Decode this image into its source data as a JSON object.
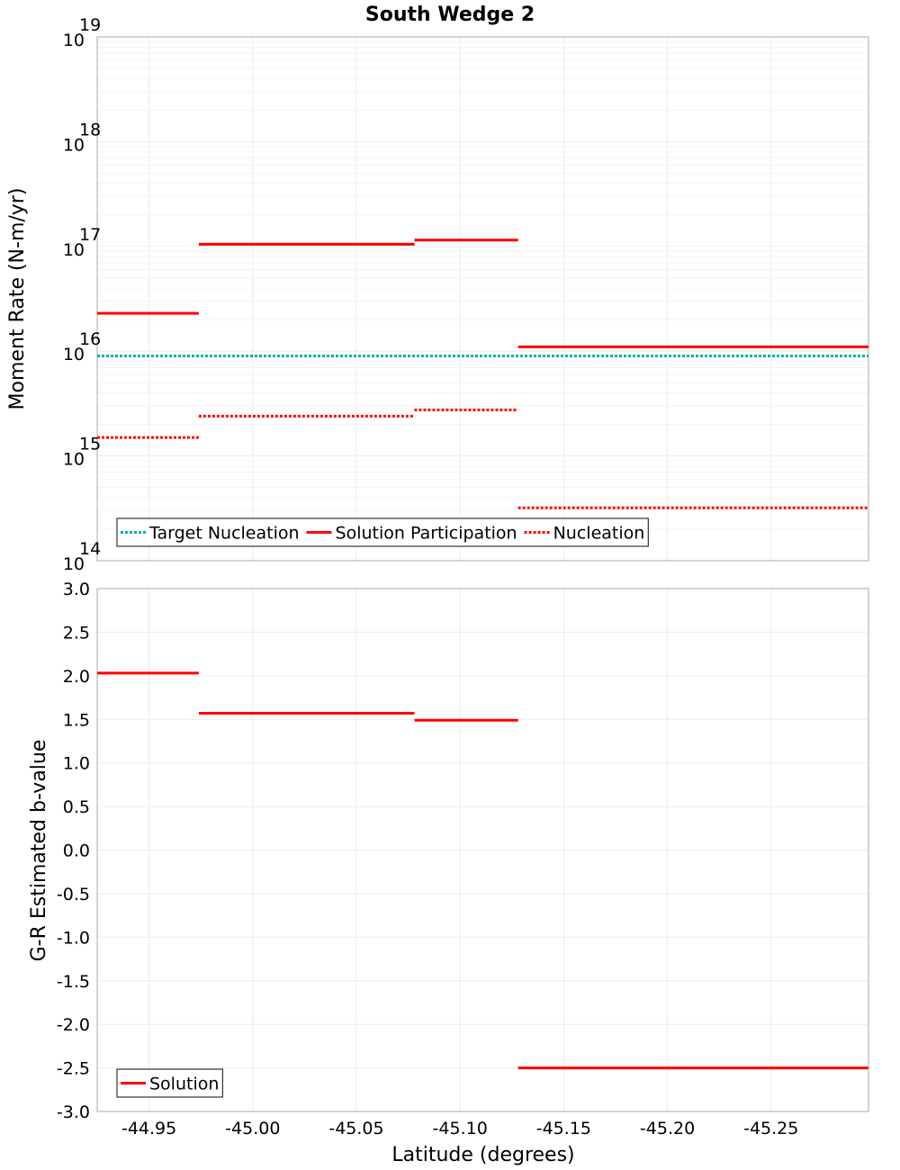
{
  "chart_data": {
    "type": "line",
    "title": "South Wedge 2",
    "xlabel": "Latitude (degrees)",
    "xlim": [
      -44.925,
      -45.297
    ],
    "x_ticks": [
      "-44.95",
      "-45.00",
      "-45.05",
      "-45.10",
      "-45.15",
      "-45.20",
      "-45.25"
    ],
    "x_tick_values": [
      -44.95,
      -45.0,
      -45.05,
      -45.1,
      -45.15,
      -45.2,
      -45.25
    ],
    "panels": [
      {
        "id": "moment",
        "ylabel": "Moment Rate (N-m/yr)",
        "yscale": "log",
        "ylim_exp": [
          14,
          19
        ],
        "y_ticks": [
          {
            "exp": 19,
            "base": "10",
            "sup": "19"
          },
          {
            "exp": 18,
            "base": "10",
            "sup": "18"
          },
          {
            "exp": 17,
            "base": "10",
            "sup": "17"
          },
          {
            "exp": 16,
            "base": "10",
            "sup": "16"
          },
          {
            "exp": 15,
            "base": "10",
            "sup": "15"
          },
          {
            "exp": 14,
            "base": "10",
            "sup": "14"
          }
        ],
        "series": [
          {
            "name": "Target Nucleation",
            "color": "#00b0b0",
            "dash": "dotted",
            "segments": [
              {
                "x0": -44.925,
                "x1": -45.297,
                "y": 9000000000000000.0
              }
            ]
          },
          {
            "name": "Solution Participation",
            "color": "#ff0000",
            "dash": "solid",
            "segments": [
              {
                "x0": -44.925,
                "x1": -44.974,
                "y": 2.3e+16
              },
              {
                "x0": -44.974,
                "x1": -45.078,
                "y": 1.05e+17
              },
              {
                "x0": -45.078,
                "x1": -45.128,
                "y": 1.15e+17
              },
              {
                "x0": -45.128,
                "x1": -45.297,
                "y": 1.1e+16
              }
            ]
          },
          {
            "name": "Nucleation",
            "color": "#ff0000",
            "dash": "dotted",
            "segments": [
              {
                "x0": -44.925,
                "x1": -44.974,
                "y": 1500000000000000.0
              },
              {
                "x0": -44.974,
                "x1": -45.078,
                "y": 2400000000000000.0
              },
              {
                "x0": -45.078,
                "x1": -45.128,
                "y": 2750000000000000.0
              },
              {
                "x0": -45.128,
                "x1": -45.297,
                "y": 320000000000000.0
              }
            ]
          }
        ],
        "legend": {
          "position": "bottom-left",
          "entries": [
            "Target Nucleation",
            "Solution Participation",
            "Nucleation"
          ]
        }
      },
      {
        "id": "bvalue",
        "ylabel": "G-R Estimated b-value",
        "yscale": "linear",
        "ylim": [
          -3.0,
          3.0
        ],
        "y_ticks": [
          "3.0",
          "2.5",
          "2.0",
          "1.5",
          "1.0",
          "0.5",
          "0.0",
          "-0.5",
          "-1.0",
          "-1.5",
          "-2.0",
          "-2.5",
          "-3.0"
        ],
        "y_tick_values": [
          3.0,
          2.5,
          2.0,
          1.5,
          1.0,
          0.5,
          0.0,
          -0.5,
          -1.0,
          -1.5,
          -2.0,
          -2.5,
          -3.0
        ],
        "series": [
          {
            "name": "Solution",
            "color": "#ff0000",
            "dash": "solid",
            "segments": [
              {
                "x0": -44.925,
                "x1": -44.974,
                "y": 2.03
              },
              {
                "x0": -44.974,
                "x1": -45.078,
                "y": 1.57
              },
              {
                "x0": -45.078,
                "x1": -45.128,
                "y": 1.49
              },
              {
                "x0": -45.128,
                "x1": -45.297,
                "y": -2.5
              }
            ]
          }
        ],
        "legend": {
          "position": "bottom-left",
          "entries": [
            "Solution"
          ]
        }
      }
    ]
  }
}
